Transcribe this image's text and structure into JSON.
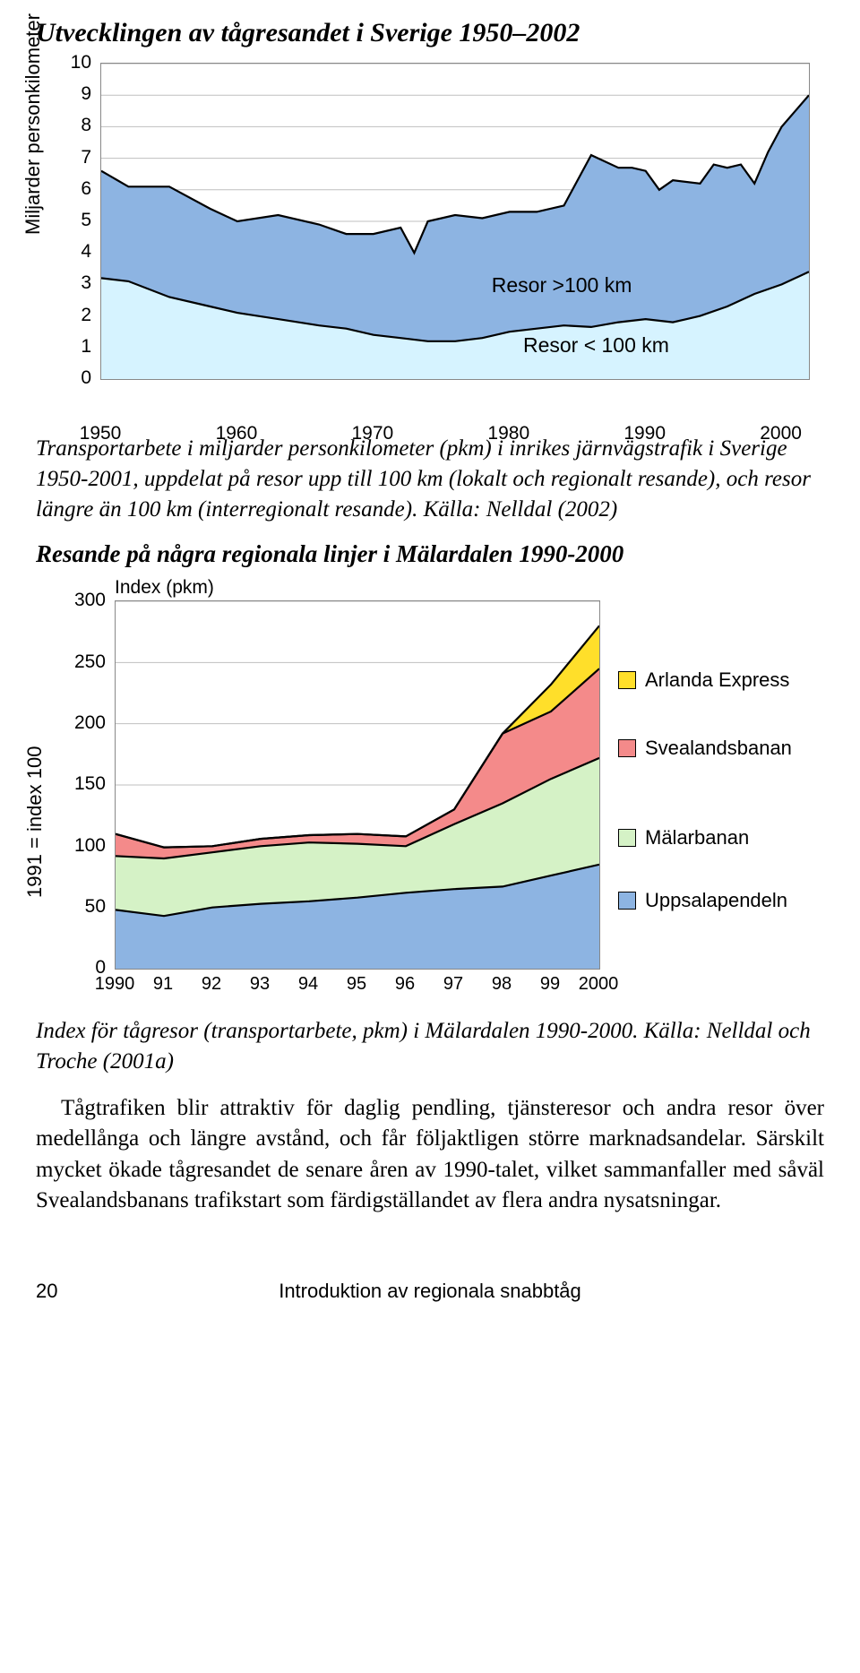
{
  "chart1": {
    "title": "Utvecklingen av tågresandet i Sverige 1950–2002",
    "type": "area-stacked",
    "ylabel": "Miljarder personkilometer",
    "ylim": [
      0,
      10
    ],
    "yticks": [
      0,
      1,
      2,
      3,
      4,
      5,
      6,
      7,
      8,
      9,
      10
    ],
    "xlim": [
      1950,
      2002
    ],
    "xticks": [
      1950,
      1960,
      1970,
      1980,
      1990,
      2000
    ],
    "annot_upper": "Resor >100 km",
    "annot_lower": "Resor < 100 km",
    "colors": {
      "upper": "#8db4e2",
      "lower": "#d6f3ff",
      "stroke": "#000",
      "grid": "#bfbfbf",
      "border": "#888888"
    },
    "line_width": 2.2,
    "series_lower": [
      [
        1950,
        3.2
      ],
      [
        1952,
        3.1
      ],
      [
        1955,
        2.6
      ],
      [
        1958,
        2.3
      ],
      [
        1960,
        2.1
      ],
      [
        1963,
        1.9
      ],
      [
        1966,
        1.7
      ],
      [
        1968,
        1.6
      ],
      [
        1970,
        1.4
      ],
      [
        1972,
        1.3
      ],
      [
        1974,
        1.2
      ],
      [
        1976,
        1.2
      ],
      [
        1978,
        1.3
      ],
      [
        1980,
        1.5
      ],
      [
        1982,
        1.6
      ],
      [
        1984,
        1.7
      ],
      [
        1986,
        1.65
      ],
      [
        1988,
        1.8
      ],
      [
        1990,
        1.9
      ],
      [
        1992,
        1.8
      ],
      [
        1994,
        2.0
      ],
      [
        1996,
        2.3
      ],
      [
        1998,
        2.7
      ],
      [
        2000,
        3.0
      ],
      [
        2002,
        3.4
      ]
    ],
    "series_total": [
      [
        1950,
        6.6
      ],
      [
        1952,
        6.1
      ],
      [
        1955,
        6.1
      ],
      [
        1958,
        5.4
      ],
      [
        1960,
        5.0
      ],
      [
        1963,
        5.2
      ],
      [
        1966,
        4.9
      ],
      [
        1968,
        4.6
      ],
      [
        1970,
        4.6
      ],
      [
        1972,
        4.8
      ],
      [
        1973,
        4.0
      ],
      [
        1974,
        5.0
      ],
      [
        1976,
        5.2
      ],
      [
        1978,
        5.1
      ],
      [
        1980,
        5.3
      ],
      [
        1982,
        5.3
      ],
      [
        1984,
        5.5
      ],
      [
        1986,
        7.1
      ],
      [
        1988,
        6.7
      ],
      [
        1989,
        6.7
      ],
      [
        1990,
        6.6
      ],
      [
        1991,
        6.0
      ],
      [
        1992,
        6.3
      ],
      [
        1994,
        6.2
      ],
      [
        1995,
        6.8
      ],
      [
        1996,
        6.7
      ],
      [
        1997,
        6.8
      ],
      [
        1998,
        6.2
      ],
      [
        1999,
        7.2
      ],
      [
        2000,
        8.0
      ],
      [
        2002,
        9.0
      ]
    ]
  },
  "caption1": "Transportarbete i miljarder personkilometer (pkm) i inrikes järnvägstrafik i Sverige 1950-2001, uppdelat på resor upp till 100 km (lokalt och regionalt resande), och resor längre än 100 km (interregionalt resande). Källa: Nelldal (2002)",
  "chart2": {
    "title_above": "Resande på några regionala linjer i Mälardalen 1990-2000",
    "inner_title": "Index (pkm)",
    "type": "area-stacked",
    "ylabel": "1991 = index 100",
    "ylim": [
      0,
      300
    ],
    "yticks": [
      0,
      50,
      100,
      150,
      200,
      250,
      300
    ],
    "xlim": [
      1990,
      2000
    ],
    "xticks": [
      "1990",
      "91",
      "92",
      "93",
      "94",
      "95",
      "96",
      "97",
      "98",
      "99",
      "2000"
    ],
    "line_width": 2.2,
    "colors": {
      "grid": "#bfbfbf",
      "border": "#888888",
      "stroke": "#000"
    },
    "legend": [
      {
        "label": "Arlanda Express",
        "color": "#ffdf2a"
      },
      {
        "label": "Svealandsbanan",
        "color": "#f48a8a"
      },
      {
        "label": "Mälarbanan",
        "color": "#d5f2c6"
      },
      {
        "label": "Uppsalapendeln",
        "color": "#8db4e2"
      }
    ],
    "cum": {
      "c0": [
        [
          1990,
          0
        ],
        [
          2000,
          0
        ]
      ],
      "c1": [
        [
          1990,
          48
        ],
        [
          1991,
          43
        ],
        [
          1992,
          50
        ],
        [
          1993,
          53
        ],
        [
          1994,
          55
        ],
        [
          1995,
          58
        ],
        [
          1996,
          62
        ],
        [
          1997,
          65
        ],
        [
          1998,
          67
        ],
        [
          1999,
          76
        ],
        [
          2000,
          85
        ]
      ],
      "c2": [
        [
          1990,
          92
        ],
        [
          1991,
          90
        ],
        [
          1992,
          95
        ],
        [
          1993,
          100
        ],
        [
          1994,
          103
        ],
        [
          1995,
          102
        ],
        [
          1996,
          100
        ],
        [
          1997,
          118
        ],
        [
          1998,
          135
        ],
        [
          1999,
          155
        ],
        [
          2000,
          172
        ]
      ],
      "c3": [
        [
          1990,
          110
        ],
        [
          1991,
          99
        ],
        [
          1992,
          100
        ],
        [
          1993,
          106
        ],
        [
          1994,
          109
        ],
        [
          1995,
          110
        ],
        [
          1996,
          108
        ],
        [
          1997,
          130
        ],
        [
          1998,
          192
        ],
        [
          1999,
          210
        ],
        [
          2000,
          245
        ]
      ],
      "c4": [
        [
          1990,
          110
        ],
        [
          1991,
          99
        ],
        [
          1992,
          100
        ],
        [
          1993,
          106
        ],
        [
          1994,
          109
        ],
        [
          1995,
          110
        ],
        [
          1996,
          108
        ],
        [
          1997,
          130
        ],
        [
          1998,
          192
        ],
        [
          1999,
          232
        ],
        [
          2000,
          280
        ]
      ]
    }
  },
  "caption2": "Index för tågresor (transportarbete, pkm) i Mälardalen 1990-2000. Källa: Nelldal och Troche (2001a)",
  "body": "Tågtrafiken blir attraktiv för daglig pendling, tjänsteresor och andra resor över medellånga och längre avstånd, och får följaktligen större marknadsandelar. Särskilt mycket ökade tågresandet de senare åren av 1990-talet, vilket sammanfaller med såväl Svealandsbanans trafikstart som färdigställandet av flera andra nysatsningar.",
  "footer": {
    "page": "20",
    "title": "Introduktion av regionala snabbtåg"
  }
}
